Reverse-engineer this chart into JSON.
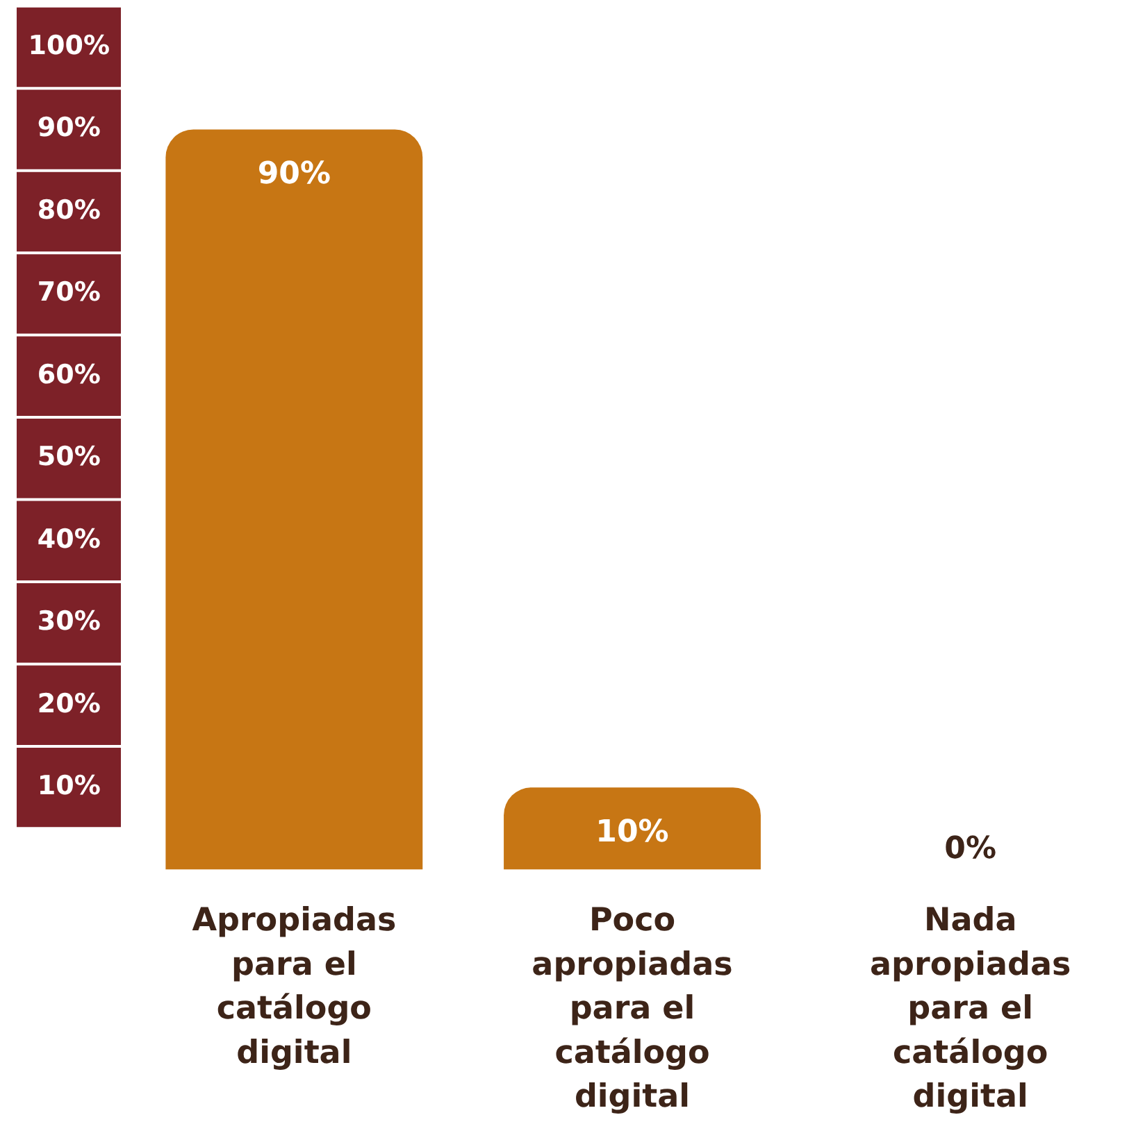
{
  "chart_data": {
    "type": "bar",
    "categories": [
      "Apropiadas para el catálogo digital",
      "Poco apropiadas para el catálogo digital",
      "Nada apropiadas para el catálogo digital"
    ],
    "values": [
      90,
      10,
      0
    ],
    "color": "#c77614",
    "ylim": [
      0,
      100
    ],
    "yticks": [
      {
        "value": 10,
        "label": "10%"
      },
      {
        "value": 20,
        "label": "20%"
      },
      {
        "value": 30,
        "label": "30%"
      },
      {
        "value": 40,
        "label": "40%"
      },
      {
        "value": 50,
        "label": "50%"
      },
      {
        "value": 60,
        "label": "60%"
      },
      {
        "value": 70,
        "label": "70%"
      },
      {
        "value": 80,
        "label": "80%"
      },
      {
        "value": 90,
        "label": "90%"
      },
      {
        "value": 100,
        "label": "100%"
      }
    ],
    "value_labels": [
      "90%",
      "10%",
      "0%"
    ],
    "grid": false,
    "legend": false
  }
}
